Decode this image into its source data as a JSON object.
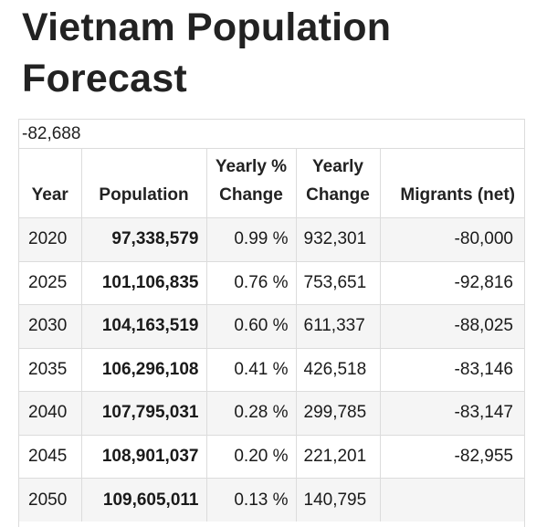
{
  "title": "Vietnam Population Forecast",
  "clipped_value": "-82,688",
  "headers": {
    "year": "Year",
    "population": "Population",
    "yearly_pct_line1": "Yearly %",
    "yearly_pct_line2": "Change",
    "yearly_change_line1": "Yearly",
    "yearly_change_line2": "Change",
    "migrants": "Migrants (net)"
  },
  "rows": [
    {
      "year": "2020",
      "population": "97,338,579",
      "yearly_pct": "0.99 %",
      "yearly_change": "932,301",
      "migrants": "-80,000"
    },
    {
      "year": "2025",
      "population": "101,106,835",
      "yearly_pct": "0.76 %",
      "yearly_change": "753,651",
      "migrants": "-92,816"
    },
    {
      "year": "2030",
      "population": "104,163,519",
      "yearly_pct": "0.60 %",
      "yearly_change": "611,337",
      "migrants": "-88,025"
    },
    {
      "year": "2035",
      "population": "106,296,108",
      "yearly_pct": "0.41 %",
      "yearly_change": "426,518",
      "migrants": "-83,146"
    },
    {
      "year": "2040",
      "population": "107,795,031",
      "yearly_pct": "0.28 %",
      "yearly_change": "299,785",
      "migrants": "-83,147"
    },
    {
      "year": "2045",
      "population": "108,901,037",
      "yearly_pct": "0.20 %",
      "yearly_change": "221,201",
      "migrants": "-82,955"
    },
    {
      "year": "2050",
      "population": "109,605,011",
      "yearly_pct": "0.13 %",
      "yearly_change": "140,795",
      "migrants": ""
    }
  ]
}
